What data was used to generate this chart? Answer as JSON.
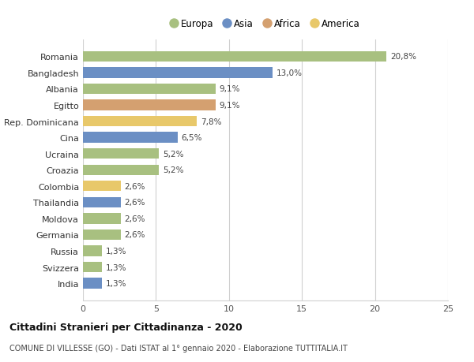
{
  "categories": [
    "Romania",
    "Bangladesh",
    "Albania",
    "Egitto",
    "Rep. Dominicana",
    "Cina",
    "Ucraina",
    "Croazia",
    "Colombia",
    "Thailandia",
    "Moldova",
    "Germania",
    "Russia",
    "Svizzera",
    "India"
  ],
  "values": [
    20.8,
    13.0,
    9.1,
    9.1,
    7.8,
    6.5,
    5.2,
    5.2,
    2.6,
    2.6,
    2.6,
    2.6,
    1.3,
    1.3,
    1.3
  ],
  "labels": [
    "20,8%",
    "13,0%",
    "9,1%",
    "9,1%",
    "7,8%",
    "6,5%",
    "5,2%",
    "5,2%",
    "2,6%",
    "2,6%",
    "2,6%",
    "2,6%",
    "1,3%",
    "1,3%",
    "1,3%"
  ],
  "colors": [
    "#a8c080",
    "#6b8fc4",
    "#a8c080",
    "#d4a070",
    "#e8c86a",
    "#6b8fc4",
    "#a8c080",
    "#a8c080",
    "#e8c86a",
    "#6b8fc4",
    "#a8c080",
    "#a8c080",
    "#a8c080",
    "#a8c080",
    "#6b8fc4"
  ],
  "legend": [
    {
      "label": "Europa",
      "color": "#a8c080"
    },
    {
      "label": "Asia",
      "color": "#6b8fc4"
    },
    {
      "label": "Africa",
      "color": "#d4a070"
    },
    {
      "label": "America",
      "color": "#e8c86a"
    }
  ],
  "xlim": [
    0,
    25
  ],
  "xticks": [
    0,
    5,
    10,
    15,
    20,
    25
  ],
  "title": "Cittadini Stranieri per Cittadinanza - 2020",
  "subtitle": "COMUNE DI VILLESSE (GO) - Dati ISTAT al 1° gennaio 2020 - Elaborazione TUTTITALIA.IT",
  "background_color": "#ffffff",
  "grid_color": "#d0d0d0"
}
